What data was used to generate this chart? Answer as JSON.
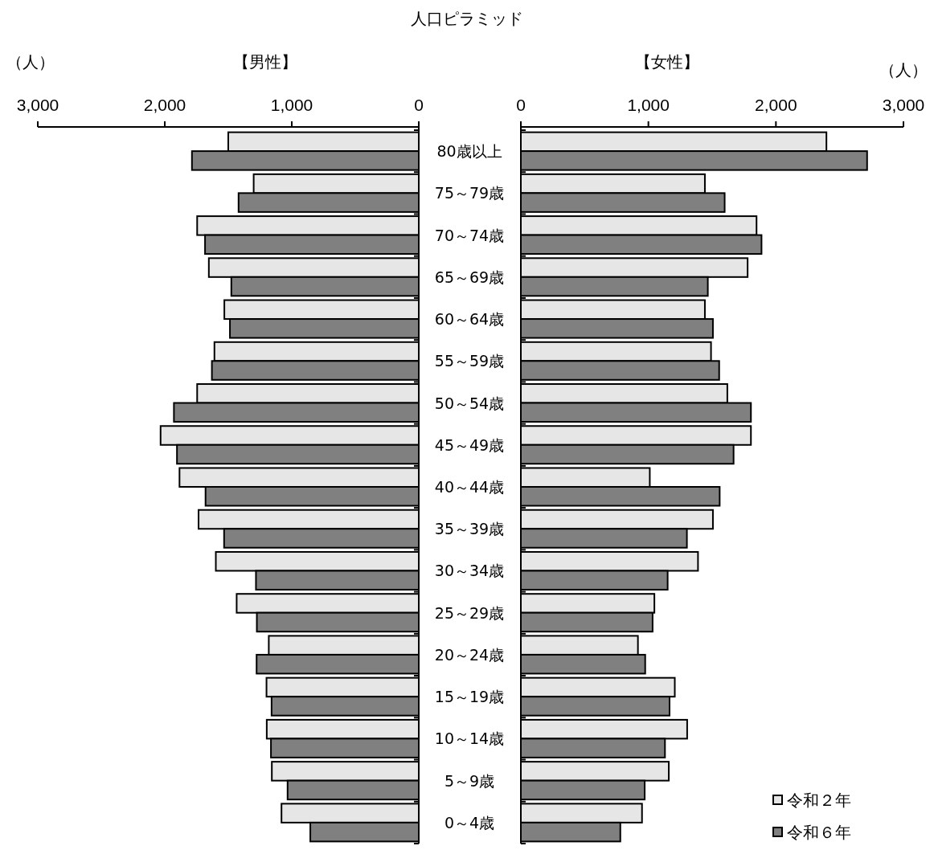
{
  "chart_data": [
    {
      "type": "bar",
      "orientation": "horizontal",
      "title": "人口ピラミッド",
      "subtitle": "【男性】",
      "xlabel": "（人）",
      "categories": [
        "80歳以上",
        "75～79歳",
        "70～74歳",
        "65～69歳",
        "60～64歳",
        "55～59歳",
        "50～54歳",
        "45～49歳",
        "40～44歳",
        "35～39歳",
        "30～34歳",
        "25～29歳",
        "20～24歳",
        "15～19歳",
        "10～14歳",
        "5～9歳",
        "0～4歳"
      ],
      "xlim": [
        3000,
        0
      ],
      "xticks": [
        {
          "value": 3000,
          "label": "3,000"
        },
        {
          "value": 2000,
          "label": "2,000"
        },
        {
          "value": 1000,
          "label": "1,000"
        },
        0
      ],
      "grid": false,
      "legend": false,
      "series": [
        {
          "color": "#e6e6e6",
          "values": [
            1500,
            1300,
            1745,
            1653,
            1531,
            1609,
            1745,
            2033,
            1884,
            1734,
            1598,
            1434,
            1181,
            1199,
            1197,
            1157,
            1081
          ]
        },
        {
          "color": "#808080",
          "values": [
            1786,
            1419,
            1683,
            1476,
            1487,
            1629,
            1928,
            1904,
            1679,
            1533,
            1282,
            1275,
            1277,
            1159,
            1164,
            1033,
            854
          ]
        }
      ]
    },
    {
      "type": "bar",
      "orientation": "horizontal",
      "subtitle": "【女性】",
      "xlabel": "（人）",
      "categories": [
        null,
        null,
        null,
        null,
        null,
        null,
        null,
        null,
        null,
        null,
        null,
        null,
        null,
        null,
        null,
        null,
        null
      ],
      "xlim": [
        0,
        3000
      ],
      "xticks": [
        0,
        {
          "value": 1000,
          "label": "1,000"
        },
        {
          "value": 2000,
          "label": "2,000"
        },
        {
          "value": 3000,
          "label": "3,000"
        }
      ],
      "grid": false,
      "legend": "bottom right",
      "series": [
        {
          "name": "令和２年",
          "color": "#e6e6e6",
          "values": [
            2396,
            1443,
            1848,
            1778,
            1443,
            1491,
            1619,
            1804,
            1011,
            1506,
            1389,
            1047,
            918,
            1207,
            1304,
            1160,
            950
          ]
        },
        {
          "name": "令和６年",
          "color": "#808080",
          "values": [
            2715,
            1598,
            1887,
            1466,
            1506,
            1555,
            1804,
            1668,
            1559,
            1302,
            1151,
            1033,
            975,
            1166,
            1130,
            971,
            780
          ]
        }
      ]
    }
  ]
}
